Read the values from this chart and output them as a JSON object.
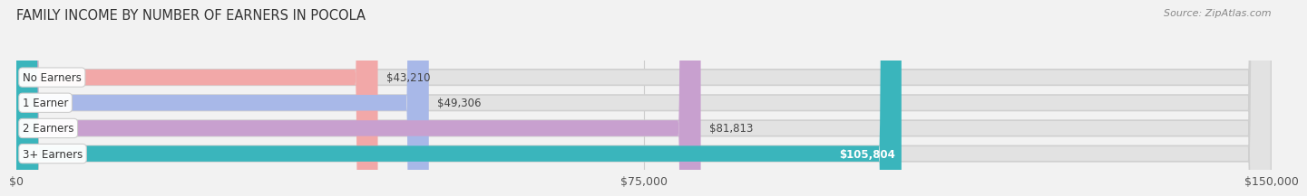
{
  "title": "FAMILY INCOME BY NUMBER OF EARNERS IN POCOLA",
  "source": "Source: ZipAtlas.com",
  "categories": [
    "No Earners",
    "1 Earner",
    "2 Earners",
    "3+ Earners"
  ],
  "values": [
    43210,
    49306,
    81813,
    105804
  ],
  "bar_colors": [
    "#f2a8a8",
    "#a8b8e8",
    "#c8a0cf",
    "#3ab5bc"
  ],
  "label_colors": [
    "#444444",
    "#444444",
    "#444444",
    "#ffffff"
  ],
  "xmax": 150000,
  "xticks": [
    0,
    75000,
    150000
  ],
  "xtick_labels": [
    "$0",
    "$75,000",
    "$150,000"
  ],
  "background_color": "#f2f2f2",
  "bar_bg_color": "#e2e2e2",
  "bar_height": 0.62,
  "title_fontsize": 10.5,
  "label_fontsize": 8.5,
  "tick_fontsize": 9,
  "source_fontsize": 8,
  "grid_color": "#cccccc"
}
